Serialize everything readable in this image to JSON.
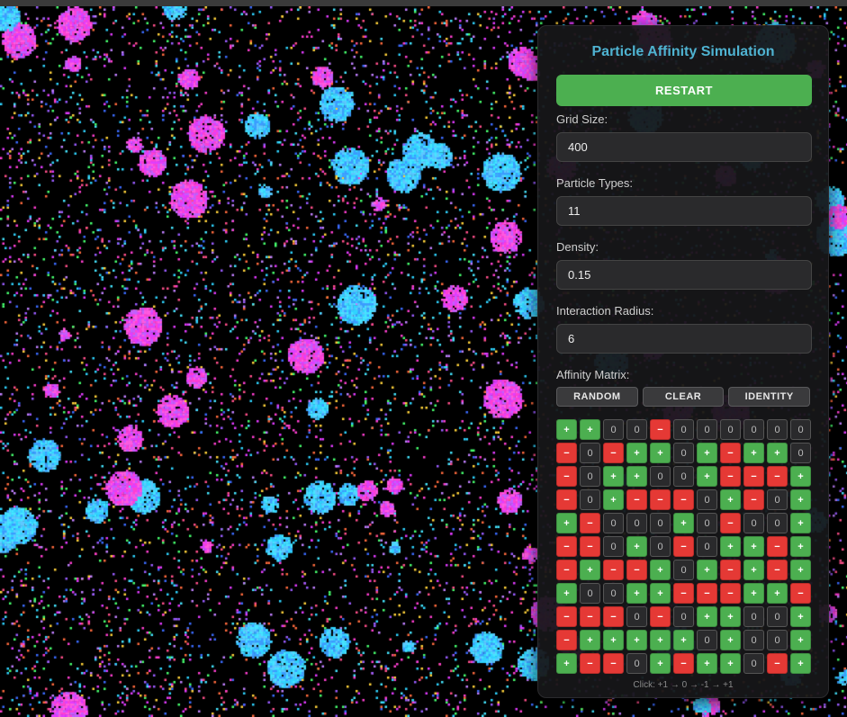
{
  "panel": {
    "title": "Particle Affinity Simulation",
    "restart_label": "RESTART",
    "fields": {
      "grid_size": {
        "label": "Grid Size:",
        "value": "400"
      },
      "particle_types": {
        "label": "Particle Types:",
        "value": "11"
      },
      "density": {
        "label": "Density:",
        "value": "0.15"
      },
      "interaction_radius": {
        "label": "Interaction Radius:",
        "value": "6"
      }
    },
    "matrix": {
      "label": "Affinity Matrix:",
      "random_label": "RANDOM",
      "clear_label": "CLEAR",
      "identity_label": "IDENTITY",
      "hint": "Click: +1 → 0 → -1 → +1",
      "rows": [
        [
          1,
          1,
          0,
          0,
          -1,
          0,
          0,
          0,
          0,
          0,
          0
        ],
        [
          -1,
          0,
          -1,
          1,
          1,
          0,
          1,
          -1,
          1,
          1,
          0
        ],
        [
          -1,
          0,
          1,
          1,
          0,
          0,
          1,
          -1,
          -1,
          -1,
          1
        ],
        [
          -1,
          0,
          1,
          -1,
          -1,
          -1,
          0,
          1,
          -1,
          0,
          1
        ],
        [
          1,
          -1,
          0,
          0,
          0,
          1,
          0,
          -1,
          0,
          0,
          1
        ],
        [
          -1,
          -1,
          0,
          1,
          0,
          -1,
          0,
          1,
          1,
          -1,
          1
        ],
        [
          -1,
          1,
          -1,
          -1,
          1,
          0,
          1,
          -1,
          1,
          -1,
          1
        ],
        [
          1,
          0,
          0,
          1,
          1,
          -1,
          -1,
          -1,
          1,
          1,
          -1
        ],
        [
          -1,
          -1,
          -1,
          0,
          -1,
          0,
          1,
          1,
          0,
          0,
          1
        ],
        [
          -1,
          1,
          1,
          1,
          1,
          1,
          0,
          1,
          0,
          0,
          1
        ],
        [
          1,
          -1,
          -1,
          0,
          1,
          -1,
          1,
          1,
          0,
          -1,
          1
        ]
      ]
    }
  },
  "symbols": {
    "positive": "+",
    "negative": "−",
    "zero": "0"
  },
  "colors": {
    "accent_green": "#4caf50",
    "negative_red": "#e53935",
    "title_blue": "#4fb3d1",
    "particle_palette": [
      "#ff3fd2",
      "#e23bff",
      "#2fd4ff",
      "#45e5ff",
      "#ff4f8a",
      "#3b6bff",
      "#9a5cff",
      "#46ff6e",
      "#ffd23a",
      "#ff6a3d",
      "#c080ff"
    ]
  }
}
